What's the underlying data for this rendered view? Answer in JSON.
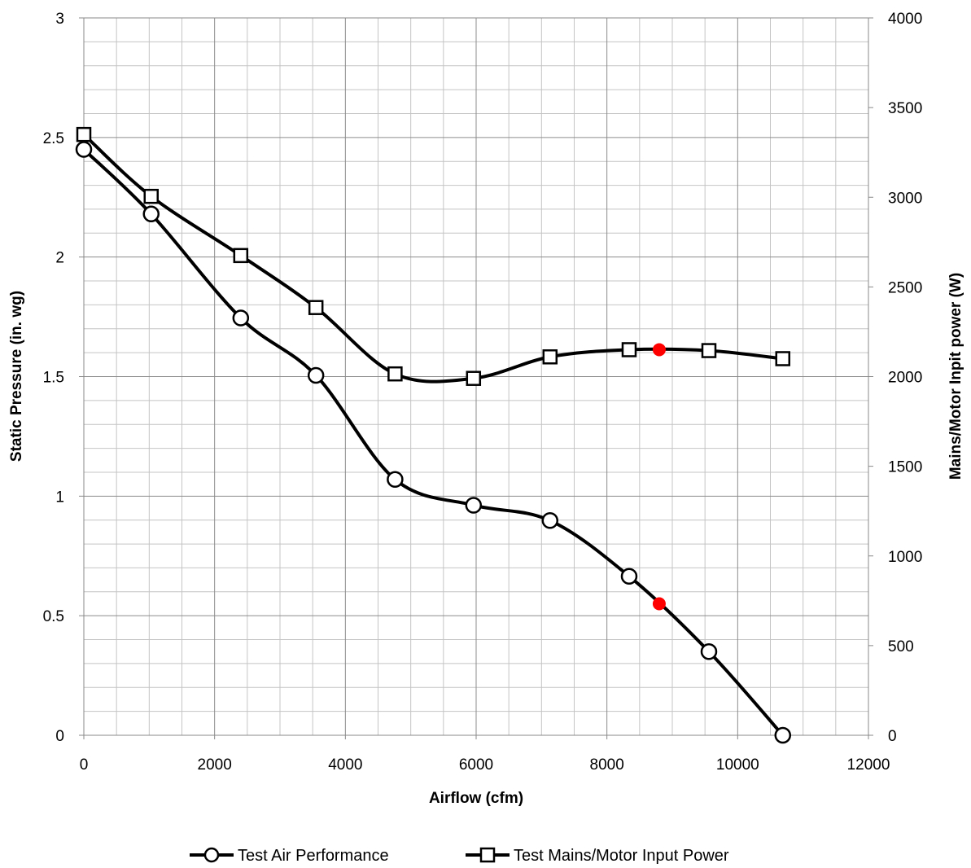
{
  "chart_data": {
    "type": "line",
    "title": "",
    "xlabel": "Airflow (cfm)",
    "ylabel": "Static Pressure (in. wg)",
    "y2label": "Mains/Motor Inpit power (W)",
    "xlim": [
      0,
      12000
    ],
    "ylim": [
      0,
      3
    ],
    "y2lim": [
      0,
      4000
    ],
    "x_ticks": [
      "0",
      "2000",
      "4000",
      "6000",
      "8000",
      "10000",
      "12000"
    ],
    "y_ticks": [
      "0",
      "0.5",
      "1",
      "1.5",
      "2",
      "2.5",
      "3"
    ],
    "y2_ticks": [
      "0",
      "500",
      "1000",
      "1500",
      "2000",
      "2500",
      "3000",
      "3500",
      "4000"
    ],
    "grid": true,
    "legend_position": "bottom",
    "series": [
      {
        "name": "Test Air Performance",
        "axis": "left",
        "marker": "circle",
        "color": "#000000",
        "x": [
          0,
          1030,
          2400,
          3550,
          4760,
          5960,
          7130,
          8340,
          9560,
          10690
        ],
        "y": [
          2.45,
          2.18,
          1.745,
          1.505,
          1.07,
          0.962,
          0.898,
          0.665,
          0.35,
          0.0
        ]
      },
      {
        "name": "Test Mains/Motor Input Power",
        "axis": "right",
        "marker": "square",
        "color": "#000000",
        "x": [
          0,
          1030,
          2400,
          3550,
          4760,
          5960,
          7130,
          8340,
          9560,
          10690
        ],
        "y": [
          3350,
          3005,
          2675,
          2385,
          2015,
          1990,
          2110,
          2150,
          2145,
          2100
        ]
      }
    ],
    "highlight_points": [
      {
        "axis": "left",
        "x": 8800,
        "y": 0.55,
        "color": "#ff0000"
      },
      {
        "axis": "right",
        "x": 8800,
        "y": 2150,
        "color": "#ff0000"
      }
    ]
  }
}
